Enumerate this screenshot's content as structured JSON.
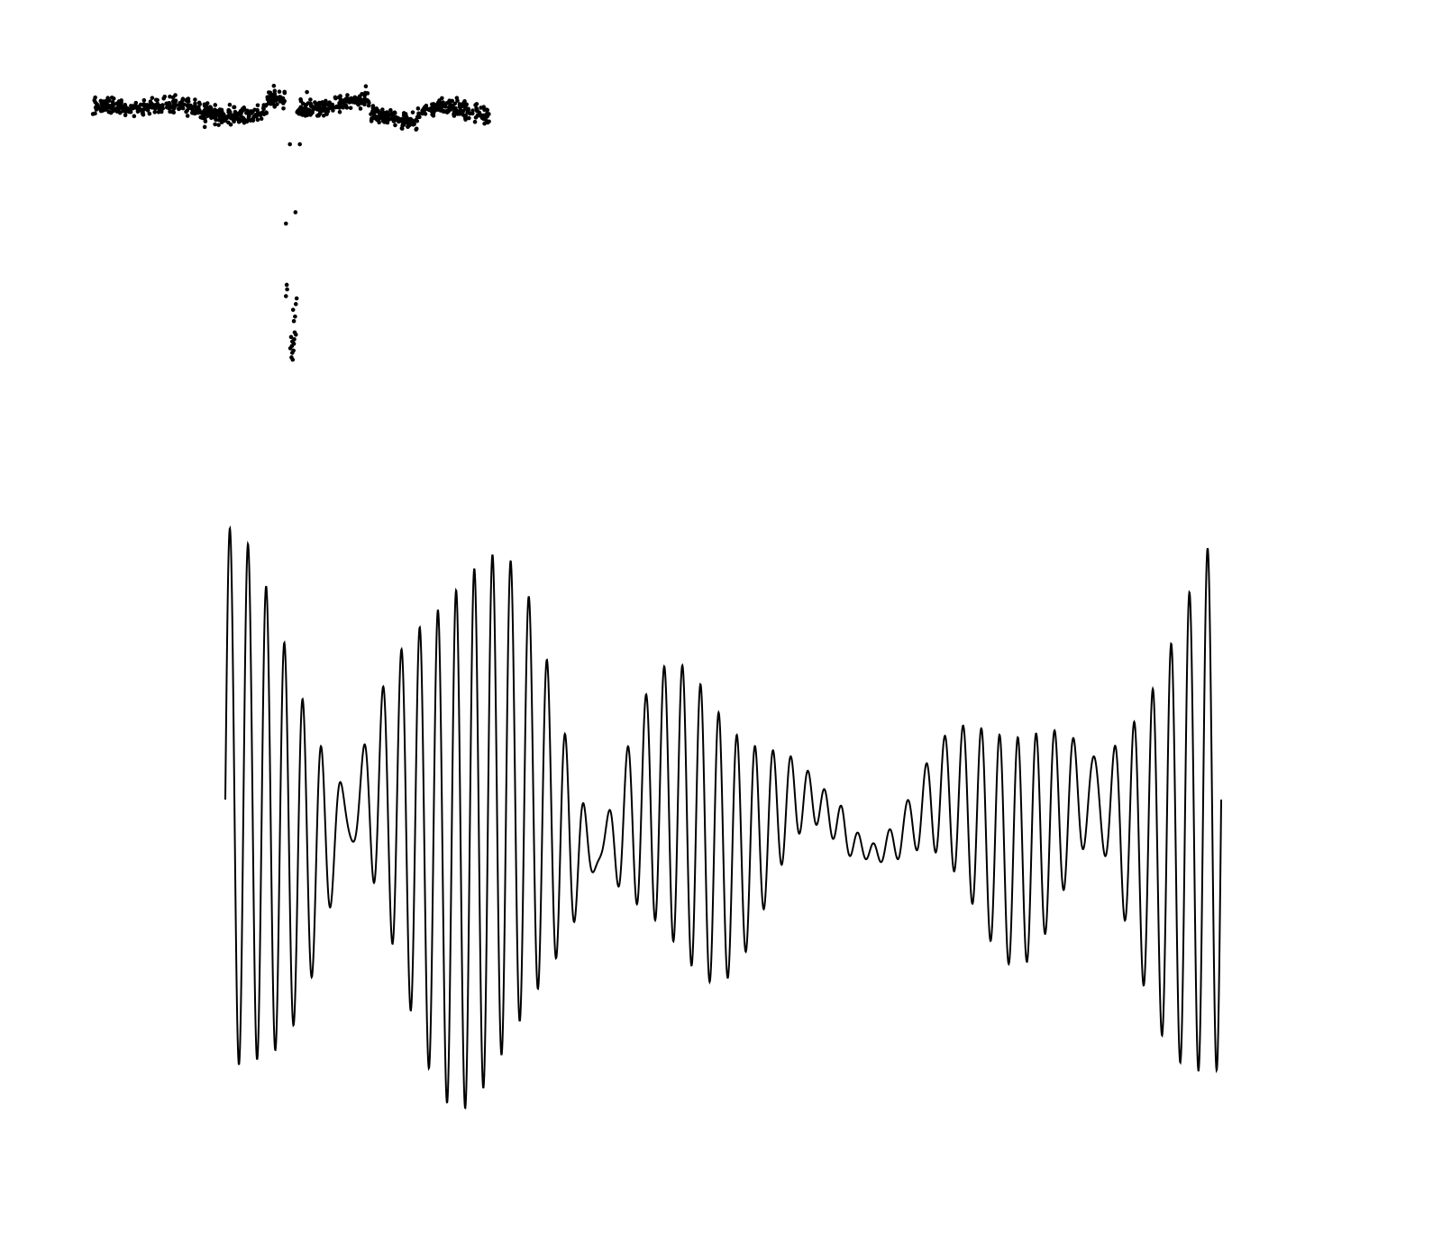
{
  "colors": {
    "ink": "#000000",
    "background": "#ffffff"
  },
  "chart_data": [
    {
      "type": "scatter",
      "title": "",
      "xlabel": "",
      "ylabel": "",
      "axes_visible": false,
      "grid": false,
      "xlim": [
        0,
        1
      ],
      "ylim": [
        -1.12,
        0.2
      ],
      "baseline": {
        "x_start": 0.0,
        "x_end": 1.0,
        "level": 0.0,
        "noise_sd": 0.018,
        "point_count": 900,
        "waves": [
          {
            "amplitude": 0.022,
            "cycles": 1.6,
            "phase": 0.4
          },
          {
            "amplitude": 0.012,
            "cycles": 4.3,
            "phase": 1.9
          }
        ],
        "local_offsets": [
          {
            "x_from": 0.44,
            "x_to": 0.49,
            "offset": 0.06
          },
          {
            "x_from": 0.52,
            "x_to": 0.7,
            "offset": 0.02
          },
          {
            "x_from": 0.7,
            "x_to": 0.82,
            "offset": -0.05
          }
        ]
      },
      "extra_points": [
        {
          "x": 0.54,
          "y": 0.08
        },
        {
          "x": 0.525,
          "y": 0.04
        },
        {
          "x": 0.56,
          "y": 0.035
        },
        {
          "x": 0.46,
          "y": 0.055
        },
        {
          "x": 0.497,
          "y": -0.15
        },
        {
          "x": 0.522,
          "y": -0.15
        },
        {
          "x": 0.487,
          "y": -0.82
        },
        {
          "x": 0.512,
          "y": -0.855
        }
      ],
      "dip": {
        "x_center": 0.5,
        "x_min": 0.485,
        "x_max": 0.515,
        "points": [
          [
            0.487,
            -0.5
          ],
          [
            0.511,
            -0.45
          ],
          [
            0.489,
            -0.77
          ],
          [
            0.49,
            -0.79
          ],
          [
            0.514,
            -0.83
          ],
          [
            0.51,
            -0.91
          ],
          [
            0.507,
            -0.93
          ],
          [
            0.505,
            -0.88
          ],
          [
            0.512,
            -0.99
          ],
          [
            0.5,
            -1.0
          ],
          [
            0.503,
            -1.02
          ],
          [
            0.508,
            -1.01
          ],
          [
            0.502,
            -1.04
          ],
          [
            0.506,
            -1.06
          ],
          [
            0.509,
            -0.98
          ],
          [
            0.503,
            -1.07
          ],
          [
            0.504,
            -1.1
          ],
          [
            0.501,
            -1.09
          ],
          [
            0.507,
            -1.03
          ],
          [
            0.498,
            -1.05
          ]
        ]
      }
    },
    {
      "type": "line",
      "title": "",
      "xlabel": "",
      "ylabel": "",
      "axes_visible": false,
      "grid": false,
      "xlim": [
        0,
        1
      ],
      "ylim": [
        -1.05,
        1.05
      ],
      "signal": {
        "point_count": 3000,
        "components": [
          {
            "amplitude": 0.55,
            "cycles": 53,
            "phase": 0.0,
            "envelope": [
              [
                0.0,
                1.0
              ],
              [
                0.3,
                1.0
              ],
              [
                0.48,
                0.55
              ],
              [
                0.62,
                0.0
              ],
              [
                0.75,
                0.35
              ],
              [
                0.9,
                0.95
              ],
              [
                1.0,
                1.0
              ]
            ]
          },
          {
            "amplitude": 0.45,
            "cycles": 57,
            "phase": 0.0,
            "envelope": [
              [
                0.0,
                1.0
              ],
              [
                0.35,
                0.95
              ],
              [
                0.55,
                0.35
              ],
              [
                0.68,
                0.05
              ],
              [
                0.82,
                0.55
              ],
              [
                1.0,
                1.0
              ]
            ]
          },
          {
            "amplitude": 0.1,
            "cycles": 7,
            "phase": 1.2,
            "envelope": [
              [
                0.0,
                1.0
              ],
              [
                1.0,
                1.0
              ]
            ]
          }
        ]
      }
    }
  ]
}
